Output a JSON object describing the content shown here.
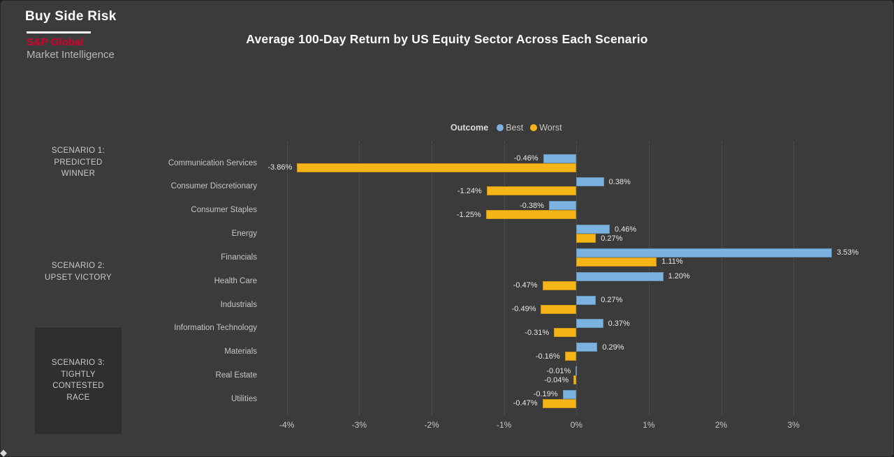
{
  "brand": {
    "product": "Buy Side Risk",
    "company": "S&P Global",
    "division": "Market Intelligence",
    "company_color": "#d6002a"
  },
  "title": "Average 100-Day Return by US Equity Sector Across Each Scenario",
  "legend": {
    "label": "Outcome",
    "items": [
      {
        "name": "Best",
        "color": "#7cb2e0"
      },
      {
        "name": "Worst",
        "color": "#f5b417"
      }
    ]
  },
  "scenarios": [
    {
      "lines": [
        "SCENARIO 1:",
        "PREDICTED",
        "WINNER"
      ],
      "selected": false
    },
    {
      "lines": [
        "SCENARIO 2:",
        "UPSET VICTORY"
      ],
      "selected": false
    },
    {
      "lines": [
        "SCENARIO 3:",
        "TIGHTLY",
        "CONTESTED",
        "RACE"
      ],
      "selected": true
    }
  ],
  "chart_data": {
    "type": "bar",
    "orientation": "horizontal",
    "title": "Average 100-Day Return by US Equity Sector Across Each Scenario",
    "categories": [
      "Communication Services",
      "Consumer Discretionary",
      "Consumer Staples",
      "Energy",
      "Financials",
      "Health Care",
      "Industrials",
      "Information Technology",
      "Materials",
      "Real Estate",
      "Utilities"
    ],
    "series": [
      {
        "name": "Best",
        "color": "#7cb2e0",
        "values": [
          -0.46,
          0.38,
          -0.38,
          0.46,
          3.53,
          1.2,
          0.27,
          0.37,
          0.29,
          -0.01,
          -0.19
        ]
      },
      {
        "name": "Worst",
        "color": "#f5b417",
        "values": [
          -3.86,
          -1.24,
          -1.25,
          0.27,
          1.11,
          -0.47,
          -0.49,
          -0.31,
          -0.16,
          -0.04,
          -0.47
        ]
      }
    ],
    "value_format": "percent_2dp",
    "x_ticks": [
      {
        "value": -4,
        "label": "-4%"
      },
      {
        "value": -3,
        "label": "-3%"
      },
      {
        "value": -2,
        "label": "-2%"
      },
      {
        "value": -1,
        "label": "-1%"
      },
      {
        "value": 0,
        "label": "0%"
      },
      {
        "value": 1,
        "label": "1%"
      },
      {
        "value": 2,
        "label": "2%"
      },
      {
        "value": 3,
        "label": "3%"
      }
    ],
    "xlim": [
      -4.2,
      4.05
    ],
    "grid": "dotted-vertical",
    "legend_position": "top"
  }
}
